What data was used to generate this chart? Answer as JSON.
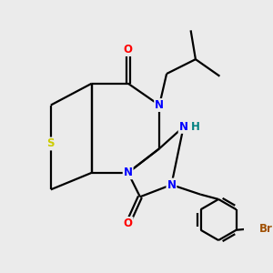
{
  "background_color": "#ebebeb",
  "atom_colors": {
    "C": "#000000",
    "N": "#0000ff",
    "O": "#ff0000",
    "S": "#cccc00",
    "Br": "#a05000",
    "H": "#008080"
  },
  "figsize": [
    3.0,
    3.0
  ],
  "dpi": 100
}
